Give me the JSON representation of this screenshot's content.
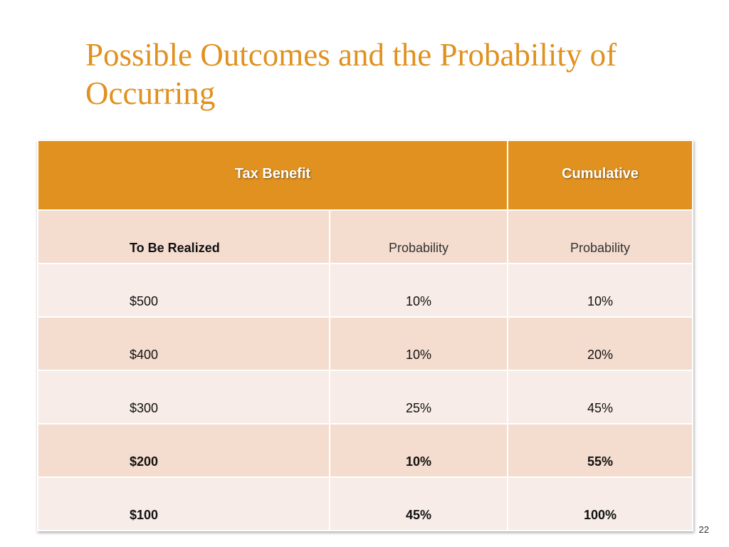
{
  "slide": {
    "title": "Possible Outcomes and the Probability of Occurring",
    "page_number": "22"
  },
  "table": {
    "header": {
      "left": "Tax Benefit",
      "right": "Cumulative"
    },
    "subheader": {
      "c1": "To Be Realized",
      "c2": "Probability",
      "c3": "Probability"
    },
    "rows": [
      {
        "c1": "$500",
        "c2": "10%",
        "c3": "10%",
        "bold": false
      },
      {
        "c1": "$400",
        "c2": "10%",
        "c3": "20%",
        "bold": false
      },
      {
        "c1": "$300",
        "c2": "25%",
        "c3": "45%",
        "bold": false
      },
      {
        "c1": "$200",
        "c2": "10%",
        "c3": "55%",
        "bold": true
      },
      {
        "c1": "$100",
        "c2": "45%",
        "c3": "100%",
        "bold": true
      }
    ]
  },
  "colors": {
    "accent": "#e0911f",
    "row_odd": "#f4dccf",
    "row_even": "#f7ece7"
  }
}
